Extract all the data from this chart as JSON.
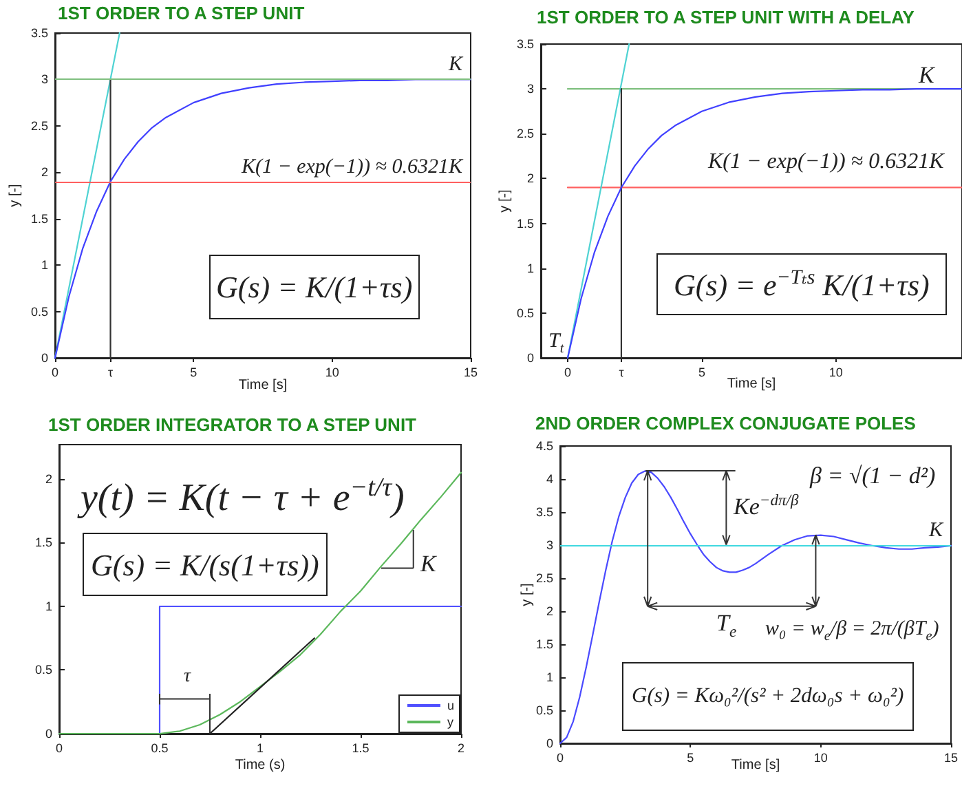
{
  "chart_data": [
    {
      "type": "line",
      "title": "1ST ORDER TO A STEP UNIT",
      "xlabel": "Time [s]",
      "ylabel": "y [-]",
      "series": [
        {
          "color": "#4fd3d3",
          "x": [
            0,
            2.33
          ],
          "values": [
            0,
            3.5
          ]
        },
        {
          "color": "#333333",
          "x": [
            2,
            2
          ],
          "values": [
            0,
            3
          ]
        },
        {
          "color": "#4040ff",
          "x": [
            0,
            0.5,
            1,
            1.5,
            2,
            2.5,
            3,
            3.5,
            4,
            5,
            6,
            7,
            8,
            9,
            10,
            11,
            12,
            13,
            14,
            15
          ],
          "values": [
            0,
            0.66,
            1.18,
            1.58,
            1.9,
            2.14,
            2.33,
            2.48,
            2.59,
            2.75,
            2.85,
            2.91,
            2.95,
            2.97,
            2.98,
            2.99,
            2.99,
            3,
            3,
            3
          ]
        }
      ],
      "ref_lines": [
        {
          "axis": "y",
          "value": 3,
          "label": "K",
          "color": "#80c080"
        },
        {
          "axis": "y",
          "value": 1.9,
          "label": "K(1 − exp(−1)) ≈ 0.6321K",
          "color": "#ff6060"
        }
      ],
      "annotations": [
        "G(s) = K/(1+τs)"
      ],
      "xlim": [
        0,
        15
      ],
      "xticks": [
        0,
        {
          "value": 2,
          "label": "τ"
        },
        5,
        10,
        15
      ],
      "ylim": [
        0,
        3.5
      ],
      "yticks": [
        0,
        0.5,
        1,
        1.5,
        2,
        2.5,
        3,
        3.5
      ]
    },
    {
      "type": "line",
      "title": "1ST ORDER TO A STEP UNIT WITH A DELAY",
      "xlabel": "Time [s]",
      "ylabel": "y [-]",
      "series": [
        {
          "color": "#80c080",
          "x": [
            0,
            14.7
          ],
          "values": [
            3,
            3
          ]
        },
        {
          "color": "#ff6060",
          "x": [
            0,
            14.7
          ],
          "values": [
            1.9,
            1.9
          ]
        },
        {
          "color": "#4fd3d3",
          "x": [
            0,
            2.29
          ],
          "values": [
            0,
            3.5
          ]
        },
        {
          "color": "#333333",
          "x": [
            2,
            2
          ],
          "values": [
            0,
            3
          ]
        },
        {
          "color": "#4040ff",
          "x": [
            0,
            0.5,
            1,
            1.5,
            2,
            2.5,
            3,
            3.5,
            4,
            5,
            6,
            7,
            8,
            9,
            10,
            11,
            12,
            13,
            14.7
          ],
          "values": [
            0,
            0.66,
            1.18,
            1.58,
            1.9,
            2.14,
            2.33,
            2.48,
            2.59,
            2.75,
            2.85,
            2.91,
            2.95,
            2.97,
            2.98,
            2.99,
            2.99,
            3,
            3
          ]
        }
      ],
      "annotations": [
        "T$_{t}$",
        "K",
        "K(1 − exp(−1)) ≈ 0.6321K",
        "G(s) = e$^{−Tₜs}$ K/(1+τs)"
      ],
      "xlim": [
        -1,
        14.7
      ],
      "xticks": [
        0,
        {
          "value": 2,
          "label": "τ"
        },
        5,
        10
      ],
      "ylim": [
        0,
        3.5
      ],
      "yticks": [
        0,
        0.5,
        1,
        1.5,
        2,
        2.5,
        3,
        3.5
      ]
    },
    {
      "type": "line",
      "title": "1ST ORDER INTEGRATOR TO A STEP UNIT",
      "xlabel": "Time (s)",
      "series": [
        {
          "name": "u",
          "color": "#4f4fff",
          "x": [
            0,
            0.5,
            0.5,
            2
          ],
          "values": [
            0,
            0,
            1,
            1
          ]
        },
        {
          "name": "y",
          "color": "#5cb85c",
          "x": [
            0,
            0.5,
            0.6,
            0.7,
            0.8,
            0.9,
            1,
            1.1,
            1.2,
            1.3,
            1.4,
            1.5,
            1.6,
            1.7,
            1.8,
            1.9,
            2
          ],
          "values": [
            0,
            0,
            0.02,
            0.07,
            0.15,
            0.25,
            0.37,
            0.49,
            0.62,
            0.78,
            0.96,
            1.12,
            1.31,
            1.49,
            1.68,
            1.86,
            2.05
          ]
        },
        {
          "color": "#222222",
          "x": [
            0.75,
            1.27
          ],
          "values": [
            0,
            0.75
          ]
        }
      ],
      "annotations": [
        "y(t) = K(t − τ + e$^{−t/τ}$)",
        "G(s) = K/(s(1+τs))",
        "τ",
        "K"
      ],
      "xlim": [
        0,
        2
      ],
      "xticks": [
        0,
        0.5,
        1,
        1.5,
        2
      ],
      "ylim": [
        0,
        2.27
      ],
      "yticks": [
        0,
        0.5,
        1,
        1.5,
        2
      ],
      "legend": "bottom right"
    },
    {
      "type": "line",
      "title": "2ND ORDER COMPLEX CONJUGATE POLES",
      "xlabel": "Time [s]",
      "ylabel": "y [-]",
      "series": [
        {
          "color": "#4a4aff",
          "x": [
            0,
            0.25,
            0.5,
            0.75,
            1,
            1.25,
            1.5,
            1.75,
            2,
            2.25,
            2.5,
            2.75,
            3,
            3.25,
            3.5,
            3.75,
            4,
            4.25,
            4.5,
            4.75,
            5,
            5.25,
            5.5,
            5.75,
            6,
            6.25,
            6.5,
            6.75,
            7,
            7.25,
            7.5,
            7.75,
            8,
            8.5,
            9,
            9.5,
            10,
            10.5,
            11,
            11.5,
            12,
            12.5,
            13,
            13.5,
            14,
            14.5,
            15
          ],
          "values": [
            0,
            0.09,
            0.33,
            0.7,
            1.15,
            1.64,
            2.14,
            2.62,
            3.06,
            3.43,
            3.72,
            3.94,
            4.07,
            4.12,
            4.1,
            4.01,
            3.88,
            3.72,
            3.54,
            3.35,
            3.17,
            3.01,
            2.86,
            2.75,
            2.66,
            2.61,
            2.59,
            2.59,
            2.62,
            2.66,
            2.72,
            2.79,
            2.86,
            2.99,
            3.08,
            3.14,
            3.15,
            3.13,
            3.08,
            3.03,
            2.99,
            2.96,
            2.94,
            2.94,
            2.96,
            2.97,
            2.99
          ]
        }
      ],
      "ref_lines": [
        {
          "axis": "y",
          "value": 3,
          "label": "K",
          "color": "#40d8e0"
        }
      ],
      "annotations": [
        {
          "text": "Ke$^{−dπ/β}$",
          "x": 3.25,
          "y": 4.12
        },
        "T$_{e}$",
        "β = √(1 − d²)",
        {
          "text": "w₀ = w$_{e}$/β = 2π/(βT$_{e}$)",
          "x": 9.8,
          "y": 3.15
        },
        "G(s) = Kω₀²/(s² + 2dω₀s + ω₀²)"
      ],
      "xlim": [
        0,
        15
      ],
      "xticks": [
        0,
        5,
        10,
        15
      ],
      "ylim": [
        0,
        4.5
      ],
      "yticks": [
        0,
        0.5,
        1,
        1.5,
        2,
        2.5,
        3,
        3.5,
        4,
        4.5
      ]
    }
  ]
}
